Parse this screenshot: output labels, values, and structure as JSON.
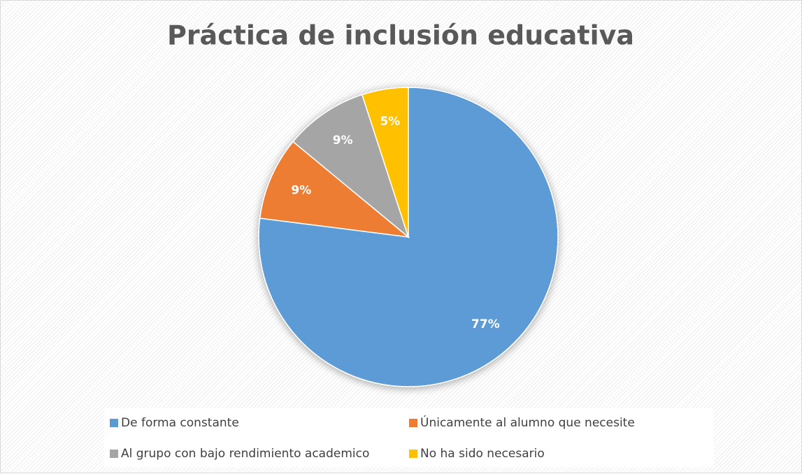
{
  "chart_data": {
    "type": "pie",
    "title": "Práctica de inclusión educativa",
    "categories": [
      "De forma constante",
      "Únicamente al alumno que necesite",
      "Al grupo con bajo rendimiento academico",
      "No ha sido necesario"
    ],
    "values": [
      77,
      9,
      9,
      5
    ],
    "value_labels": [
      "77%",
      "9%",
      "9%",
      "5%"
    ],
    "colors": [
      "#5b9bd5",
      "#ed7d31",
      "#a5a5a5",
      "#ffc000"
    ],
    "legend": "bottom"
  }
}
